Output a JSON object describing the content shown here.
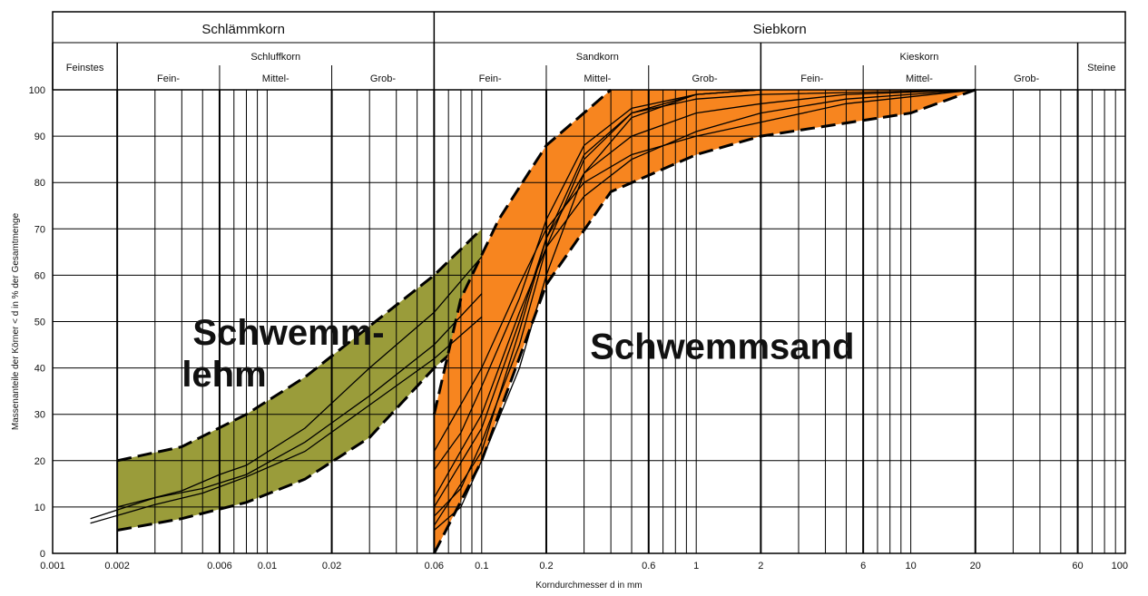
{
  "chart_data": {
    "type": "line",
    "title": "",
    "xlabel": "Korndurchmesser d in mm",
    "ylabel": "Massenanteile der Körner < d in % der Gesamtmenge",
    "x_scale": "log",
    "xlim": [
      0.001,
      100
    ],
    "ylim": [
      0,
      100
    ],
    "grid": true,
    "x_tick_labels": [
      {
        "value": 0.001,
        "label": "0.001"
      },
      {
        "value": 0.002,
        "label": "0.002"
      },
      {
        "value": 0.006,
        "label": "0.006"
      },
      {
        "value": 0.01,
        "label": "0.01"
      },
      {
        "value": 0.02,
        "label": "0.02"
      },
      {
        "value": 0.06,
        "label": "0.06"
      },
      {
        "value": 0.1,
        "label": "0.1"
      },
      {
        "value": 0.2,
        "label": "0.2"
      },
      {
        "value": 0.6,
        "label": "0.6"
      },
      {
        "value": 1,
        "label": "1"
      },
      {
        "value": 2,
        "label": "2"
      },
      {
        "value": 6,
        "label": "6"
      },
      {
        "value": 10,
        "label": "10"
      },
      {
        "value": 20,
        "label": "20"
      },
      {
        "value": 60,
        "label": "60"
      },
      {
        "value": 100,
        "label": "100"
      }
    ],
    "y_tick_labels": [
      "0",
      "10",
      "20",
      "30",
      "40",
      "50",
      "60",
      "70",
      "80",
      "90",
      "100"
    ],
    "y_ticks": [
      0,
      10,
      20,
      30,
      40,
      50,
      60,
      70,
      80,
      90,
      100
    ],
    "header": {
      "top": [
        {
          "label": "Schlämmkorn",
          "from": 0.001,
          "to": 0.06
        },
        {
          "label": "Siebkorn",
          "from": 0.06,
          "to": 100
        }
      ],
      "middle": [
        {
          "label": "Feinstes",
          "from": 0.001,
          "to": 0.002
        },
        {
          "label": "Schluffkorn",
          "from": 0.002,
          "to": 0.06
        },
        {
          "label": "Sandkorn",
          "from": 0.06,
          "to": 2
        },
        {
          "label": "Kieskorn",
          "from": 2,
          "to": 60
        },
        {
          "label": "Steine",
          "from": 60,
          "to": 100
        }
      ],
      "sub": [
        {
          "label": "Fein-",
          "from": 0.002,
          "to": 0.006
        },
        {
          "label": "Mittel-",
          "from": 0.006,
          "to": 0.02
        },
        {
          "label": "Grob-",
          "from": 0.02,
          "to": 0.06
        },
        {
          "label": "Fein-",
          "from": 0.06,
          "to": 0.2
        },
        {
          "label": "Mittel-",
          "from": 0.2,
          "to": 0.6
        },
        {
          "label": "Grob-",
          "from": 0.6,
          "to": 2
        },
        {
          "label": "Fein-",
          "from": 2,
          "to": 6
        },
        {
          "label": "Mittel-",
          "from": 6,
          "to": 20
        },
        {
          "label": "Grob-",
          "from": 20,
          "to": 60
        }
      ]
    },
    "bands": [
      {
        "label": "Schwemm-\nlehm",
        "label_lines": [
          "Schwemm-",
          "lehm"
        ],
        "label_position": [
          0.0045,
          45
        ],
        "color": "#9a9c3a",
        "upper": [
          [
            0.002,
            20
          ],
          [
            0.004,
            23
          ],
          [
            0.008,
            30
          ],
          [
            0.015,
            38
          ],
          [
            0.03,
            49
          ],
          [
            0.06,
            60
          ],
          [
            0.1,
            70
          ]
        ],
        "lower": [
          [
            0.002,
            5
          ],
          [
            0.004,
            7.5
          ],
          [
            0.008,
            11
          ],
          [
            0.015,
            16
          ],
          [
            0.03,
            25
          ],
          [
            0.06,
            40
          ],
          [
            0.1,
            49
          ]
        ]
      },
      {
        "label": "Schwemmsand",
        "label_lines": [
          "Schwemmsand"
        ],
        "label_position": [
          0.32,
          42
        ],
        "color": "#f7851f",
        "upper": [
          [
            0.06,
            30
          ],
          [
            0.08,
            55
          ],
          [
            0.12,
            72
          ],
          [
            0.2,
            88
          ],
          [
            0.4,
            100
          ]
        ],
        "lower": [
          [
            0.06,
            0
          ],
          [
            0.1,
            20
          ],
          [
            0.2,
            58
          ],
          [
            0.4,
            78
          ],
          [
            1,
            86
          ],
          [
            2,
            90
          ],
          [
            10,
            95
          ],
          [
            20,
            100
          ]
        ]
      }
    ],
    "series": [
      {
        "x": [
          0.0015,
          0.003,
          0.005,
          0.008,
          0.015,
          0.03,
          0.06,
          0.1
        ],
        "y": [
          7.5,
          12,
          14,
          17,
          24,
          34,
          45,
          56
        ]
      },
      {
        "x": [
          0.0015,
          0.003,
          0.005,
          0.008,
          0.015,
          0.03,
          0.06,
          0.1
        ],
        "y": [
          6.5,
          10.5,
          13,
          16.5,
          22,
          32,
          42,
          51
        ]
      },
      {
        "x": [
          0.002,
          0.004,
          0.006,
          0.008,
          0.015,
          0.03,
          0.06,
          0.1
        ],
        "y": [
          10,
          13.5,
          17,
          19,
          27,
          40,
          52,
          64
        ]
      },
      {
        "x": [
          0.06,
          0.08,
          0.1,
          0.15,
          0.2,
          0.3,
          0.5,
          1,
          2
        ],
        "y": [
          18,
          26,
          36,
          55,
          72,
          88,
          96,
          99,
          100
        ]
      },
      {
        "x": [
          0.06,
          0.08,
          0.1,
          0.15,
          0.2,
          0.3,
          0.5,
          1,
          2
        ],
        "y": [
          8,
          14,
          24,
          45,
          66,
          85,
          95,
          99,
          100
        ]
      },
      {
        "x": [
          0.06,
          0.08,
          0.1,
          0.15,
          0.2,
          0.3,
          0.5,
          1,
          2
        ],
        "y": [
          5,
          10,
          20,
          40,
          60,
          82,
          94,
          99,
          100
        ]
      },
      {
        "x": [
          0.06,
          0.1,
          0.15,
          0.2,
          0.3,
          0.5,
          1,
          2,
          5,
          20
        ],
        "y": [
          22,
          40,
          58,
          70,
          80,
          86,
          90,
          93,
          97,
          100
        ]
      },
      {
        "x": [
          0.06,
          0.1,
          0.15,
          0.2,
          0.3,
          0.5,
          1,
          2,
          5,
          20
        ],
        "y": [
          12,
          30,
          52,
          66,
          77,
          85,
          91,
          95,
          98,
          100
        ]
      },
      {
        "x": [
          0.06,
          0.1,
          0.15,
          0.2,
          0.3,
          0.5,
          1,
          2,
          5,
          20
        ],
        "y": [
          10,
          27,
          50,
          68,
          82,
          90,
          95,
          97,
          99,
          100
        ]
      },
      {
        "x": [
          0.06,
          0.1,
          0.15,
          0.2,
          0.3,
          0.5,
          1,
          2,
          20
        ],
        "y": [
          6,
          22,
          48,
          68,
          86,
          95,
          98,
          99,
          100
        ]
      }
    ]
  }
}
